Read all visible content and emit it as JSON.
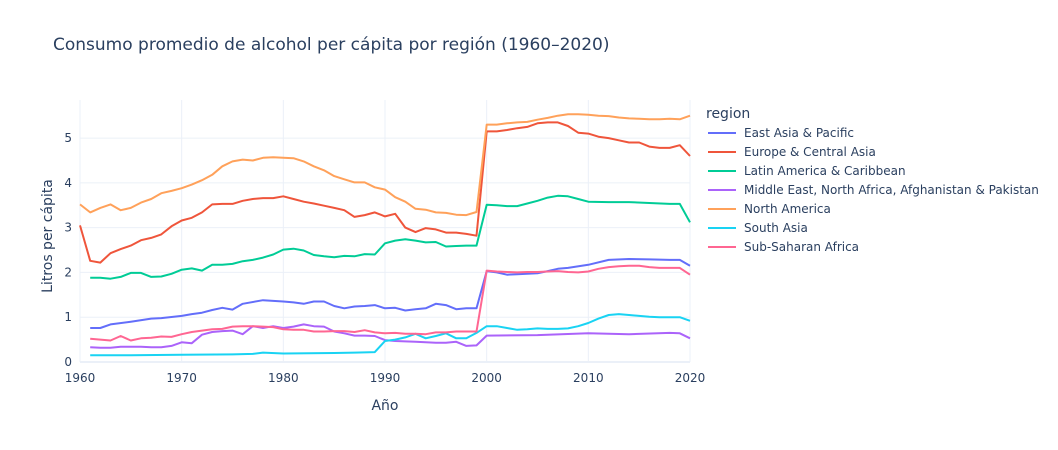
{
  "chart_data": {
    "type": "line",
    "title": "Consumo promedio de alcohol per cápita por región (1960–2020)",
    "xlabel": "Año",
    "ylabel": "Litros per cápita",
    "xlim": [
      1960,
      2020
    ],
    "ylim": [
      0,
      5.85
    ],
    "xticks": [
      "1960",
      "1970",
      "1980",
      "1990",
      "2000",
      "2010",
      "2020"
    ],
    "yticks": [
      "0",
      "1",
      "2",
      "3",
      "4",
      "5"
    ],
    "legend_title": "region",
    "legend_position": "right",
    "grid": true,
    "series": [
      {
        "name": "East Asia & Pacific",
        "color": "#636efa",
        "x": [
          1961,
          1962,
          1963,
          1965,
          1967,
          1968,
          1970,
          1971,
          1972,
          1973,
          1974,
          1975,
          1976,
          1978,
          1980,
          1981,
          1982,
          1983,
          1984,
          1985,
          1986,
          1987,
          1988,
          1989,
          1990,
          1991,
          1992,
          1993,
          1994,
          1995,
          1996,
          1997,
          1998,
          1999,
          2000,
          2001,
          2002,
          2003,
          2004,
          2005,
          2006,
          2007,
          2008,
          2010,
          2012,
          2014,
          2016,
          2018,
          2019,
          2020
        ],
        "y": [
          0.76,
          0.76,
          0.84,
          0.9,
          0.97,
          0.98,
          1.03,
          1.07,
          1.1,
          1.16,
          1.21,
          1.17,
          1.3,
          1.38,
          1.35,
          1.33,
          1.3,
          1.35,
          1.35,
          1.25,
          1.2,
          1.24,
          1.25,
          1.27,
          1.2,
          1.21,
          1.15,
          1.18,
          1.2,
          1.3,
          1.27,
          1.18,
          1.2,
          1.2,
          2.03,
          2.0,
          1.95,
          1.96,
          1.97,
          1.98,
          2.03,
          2.08,
          2.1,
          2.17,
          2.28,
          2.3,
          2.29,
          2.28,
          2.28,
          2.15
        ]
      },
      {
        "name": "Europe & Central Asia",
        "color": "#ef553b",
        "x": [
          1960,
          1961,
          1962,
          1963,
          1964,
          1965,
          1966,
          1967,
          1968,
          1969,
          1970,
          1971,
          1972,
          1973,
          1974,
          1975,
          1976,
          1977,
          1978,
          1979,
          1980,
          1981,
          1982,
          1983,
          1984,
          1985,
          1986,
          1987,
          1988,
          1989,
          1990,
          1991,
          1992,
          1993,
          1994,
          1995,
          1996,
          1997,
          1998,
          1999,
          2000,
          2001,
          2002,
          2003,
          2004,
          2005,
          2006,
          2007,
          2008,
          2009,
          2010,
          2011,
          2012,
          2013,
          2014,
          2015,
          2016,
          2017,
          2018,
          2019,
          2020
        ],
        "y": [
          3.05,
          2.26,
          2.22,
          2.43,
          2.52,
          2.6,
          2.72,
          2.77,
          2.85,
          3.03,
          3.16,
          3.22,
          3.34,
          3.52,
          3.53,
          3.53,
          3.6,
          3.64,
          3.66,
          3.66,
          3.7,
          3.64,
          3.58,
          3.54,
          3.49,
          3.44,
          3.39,
          3.24,
          3.28,
          3.34,
          3.25,
          3.31,
          3.0,
          2.9,
          2.99,
          2.96,
          2.89,
          2.89,
          2.86,
          2.82,
          5.15,
          5.15,
          5.18,
          5.22,
          5.25,
          5.33,
          5.35,
          5.35,
          5.27,
          5.12,
          5.1,
          5.03,
          5.0,
          4.95,
          4.9,
          4.9,
          4.81,
          4.78,
          4.78,
          4.84,
          4.6
        ]
      },
      {
        "name": "Latin America & Caribbean",
        "color": "#00cc96",
        "x": [
          1961,
          1962,
          1963,
          1964,
          1965,
          1966,
          1967,
          1968,
          1969,
          1970,
          1971,
          1972,
          1973,
          1974,
          1975,
          1976,
          1977,
          1978,
          1979,
          1980,
          1981,
          1982,
          1983,
          1984,
          1985,
          1986,
          1987,
          1988,
          1989,
          1990,
          1991,
          1992,
          1993,
          1994,
          1995,
          1996,
          1997,
          1998,
          1999,
          2000,
          2001,
          2002,
          2003,
          2004,
          2005,
          2006,
          2007,
          2008,
          2009,
          2010,
          2012,
          2014,
          2016,
          2018,
          2019,
          2020
        ],
        "y": [
          1.88,
          1.88,
          1.86,
          1.9,
          1.99,
          1.99,
          1.9,
          1.91,
          1.97,
          2.06,
          2.09,
          2.04,
          2.17,
          2.17,
          2.19,
          2.25,
          2.28,
          2.33,
          2.4,
          2.51,
          2.53,
          2.49,
          2.39,
          2.36,
          2.34,
          2.37,
          2.36,
          2.41,
          2.4,
          2.65,
          2.71,
          2.74,
          2.71,
          2.67,
          2.68,
          2.58,
          2.59,
          2.6,
          2.6,
          3.51,
          3.5,
          3.48,
          3.48,
          3.54,
          3.6,
          3.67,
          3.71,
          3.7,
          3.64,
          3.58,
          3.57,
          3.57,
          3.55,
          3.53,
          3.53,
          3.12
        ]
      },
      {
        "name": "Middle East, North Africa, Afghanistan & Pakistan",
        "color": "#ab63fa",
        "x": [
          1961,
          1962,
          1963,
          1964,
          1965,
          1966,
          1967,
          1968,
          1969,
          1970,
          1971,
          1972,
          1973,
          1974,
          1975,
          1976,
          1977,
          1978,
          1979,
          1980,
          1981,
          1982,
          1983,
          1984,
          1985,
          1986,
          1987,
          1988,
          1989,
          1990,
          1991,
          1992,
          1993,
          1994,
          1995,
          1996,
          1997,
          1998,
          1999,
          2000,
          2005,
          2010,
          2014,
          2018,
          2019,
          2020
        ],
        "y": [
          0.33,
          0.32,
          0.32,
          0.34,
          0.34,
          0.34,
          0.33,
          0.33,
          0.36,
          0.44,
          0.42,
          0.61,
          0.67,
          0.69,
          0.7,
          0.62,
          0.8,
          0.76,
          0.8,
          0.76,
          0.79,
          0.84,
          0.8,
          0.79,
          0.68,
          0.64,
          0.59,
          0.59,
          0.58,
          0.49,
          0.47,
          0.46,
          0.45,
          0.44,
          0.43,
          0.43,
          0.45,
          0.36,
          0.37,
          0.59,
          0.6,
          0.64,
          0.62,
          0.65,
          0.64,
          0.53
        ]
      },
      {
        "name": "North America",
        "color": "#ffa15a",
        "x": [
          1960,
          1961,
          1962,
          1963,
          1964,
          1965,
          1966,
          1967,
          1968,
          1969,
          1970,
          1971,
          1972,
          1973,
          1974,
          1975,
          1976,
          1977,
          1978,
          1979,
          1980,
          1981,
          1982,
          1983,
          1984,
          1985,
          1986,
          1987,
          1988,
          1989,
          1990,
          1991,
          1992,
          1993,
          1994,
          1995,
          1996,
          1997,
          1998,
          1999,
          2000,
          2001,
          2002,
          2003,
          2004,
          2005,
          2006,
          2007,
          2008,
          2009,
          2010,
          2011,
          2012,
          2013,
          2014,
          2015,
          2016,
          2017,
          2018,
          2019,
          2020
        ],
        "y": [
          3.52,
          3.34,
          3.44,
          3.52,
          3.39,
          3.44,
          3.56,
          3.64,
          3.77,
          3.82,
          3.88,
          3.96,
          4.06,
          4.18,
          4.37,
          4.48,
          4.52,
          4.5,
          4.56,
          4.57,
          4.56,
          4.55,
          4.48,
          4.37,
          4.28,
          4.15,
          4.08,
          4.01,
          4.01,
          3.9,
          3.85,
          3.68,
          3.58,
          3.42,
          3.4,
          3.34,
          3.33,
          3.29,
          3.28,
          3.35,
          5.3,
          5.3,
          5.33,
          5.35,
          5.36,
          5.41,
          5.45,
          5.5,
          5.53,
          5.53,
          5.52,
          5.5,
          5.49,
          5.46,
          5.44,
          5.43,
          5.42,
          5.42,
          5.43,
          5.42,
          5.5
        ]
      },
      {
        "name": "South Asia",
        "color": "#19d3f3",
        "x": [
          1961,
          1965,
          1970,
          1975,
          1977,
          1978,
          1980,
          1985,
          1987,
          1989,
          1990,
          1991,
          1992,
          1993,
          1994,
          1995,
          1996,
          1997,
          1998,
          1999,
          2000,
          2001,
          2002,
          2003,
          2004,
          2005,
          2006,
          2007,
          2008,
          2009,
          2010,
          2011,
          2012,
          2013,
          2014,
          2015,
          2016,
          2017,
          2018,
          2019,
          2020
        ],
        "y": [
          0.15,
          0.15,
          0.16,
          0.17,
          0.18,
          0.21,
          0.19,
          0.2,
          0.21,
          0.22,
          0.47,
          0.5,
          0.55,
          0.63,
          0.53,
          0.58,
          0.64,
          0.53,
          0.53,
          0.65,
          0.8,
          0.8,
          0.76,
          0.72,
          0.73,
          0.75,
          0.74,
          0.74,
          0.75,
          0.8,
          0.87,
          0.97,
          1.05,
          1.07,
          1.05,
          1.03,
          1.01,
          1.0,
          1.0,
          1.0,
          0.92
        ]
      },
      {
        "name": "Sub-Saharan Africa",
        "color": "#ff6692",
        "x": [
          1961,
          1962,
          1963,
          1964,
          1965,
          1966,
          1967,
          1968,
          1969,
          1970,
          1971,
          1972,
          1973,
          1974,
          1975,
          1976,
          1977,
          1978,
          1979,
          1980,
          1981,
          1982,
          1983,
          1984,
          1985,
          1986,
          1987,
          1988,
          1989,
          1990,
          1991,
          1992,
          1993,
          1994,
          1995,
          1996,
          1997,
          1998,
          1999,
          2000,
          2001,
          2002,
          2003,
          2004,
          2005,
          2006,
          2007,
          2008,
          2009,
          2010,
          2011,
          2012,
          2013,
          2014,
          2015,
          2016,
          2017,
          2018,
          2019,
          2020
        ],
        "y": [
          0.52,
          0.5,
          0.48,
          0.58,
          0.48,
          0.53,
          0.54,
          0.57,
          0.56,
          0.62,
          0.67,
          0.7,
          0.73,
          0.74,
          0.79,
          0.8,
          0.8,
          0.79,
          0.78,
          0.73,
          0.72,
          0.72,
          0.68,
          0.68,
          0.69,
          0.69,
          0.67,
          0.71,
          0.66,
          0.64,
          0.65,
          0.63,
          0.63,
          0.62,
          0.66,
          0.66,
          0.68,
          0.68,
          0.68,
          2.04,
          2.02,
          2.01,
          2.0,
          2.01,
          2.01,
          2.02,
          2.03,
          2.01,
          2.0,
          2.02,
          2.08,
          2.12,
          2.14,
          2.15,
          2.15,
          2.12,
          2.1,
          2.1,
          2.1,
          1.95
        ]
      }
    ]
  }
}
